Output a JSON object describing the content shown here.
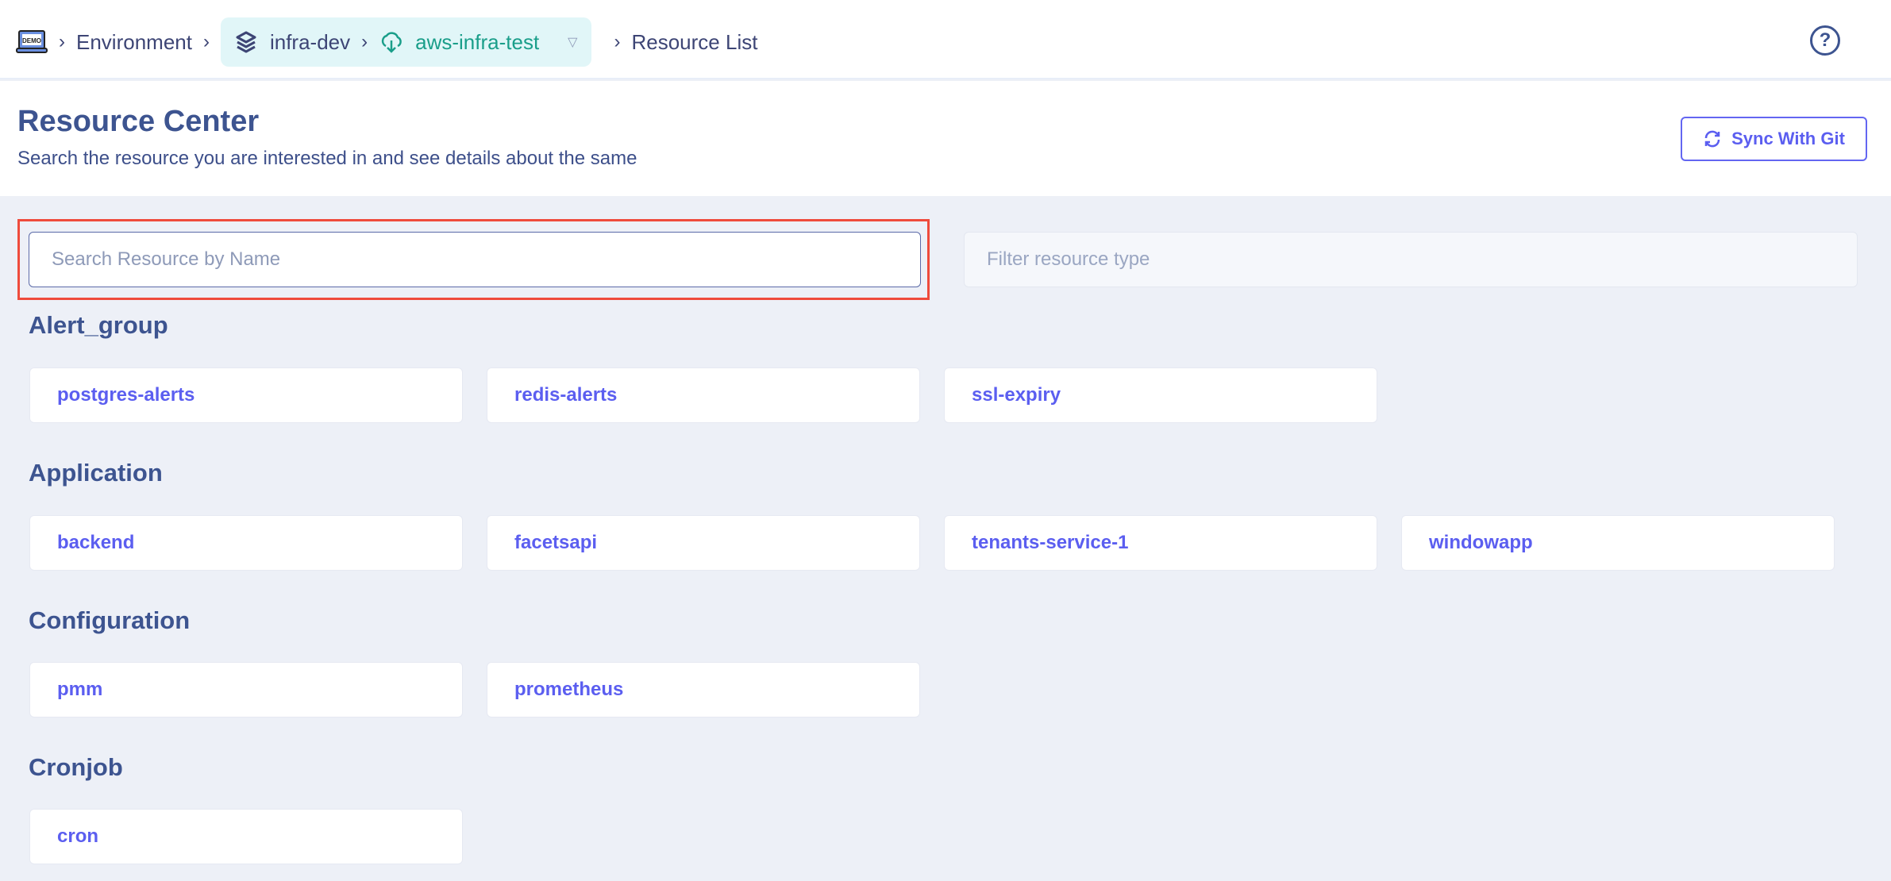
{
  "breadcrumb": {
    "logo": "DEMO",
    "environment": "Environment",
    "project": "infra-dev",
    "stack": "aws-infra-test",
    "page": "Resource List"
  },
  "header": {
    "title": "Resource Center",
    "subtitle": "Search the resource you are interested in and see details about the same",
    "sync_label": "Sync With Git",
    "help": "?"
  },
  "search": {
    "placeholder": "Search Resource by Name",
    "value": ""
  },
  "filter": {
    "placeholder": "Filter resource type"
  },
  "sections": [
    {
      "title": "Alert_group",
      "items": [
        "postgres-alerts",
        "redis-alerts",
        "ssl-expiry"
      ]
    },
    {
      "title": "Application",
      "items": [
        "backend",
        "facetsapi",
        "tenants-service-1",
        "windowapp"
      ]
    },
    {
      "title": "Configuration",
      "items": [
        "pmm",
        "prometheus"
      ]
    },
    {
      "title": "Cronjob",
      "items": [
        "cron"
      ]
    }
  ],
  "colors": {
    "accent": "#5b5ef0",
    "teal": "#1a9e8a",
    "focus": "#ef4b3c",
    "heading": "#3d5490"
  }
}
